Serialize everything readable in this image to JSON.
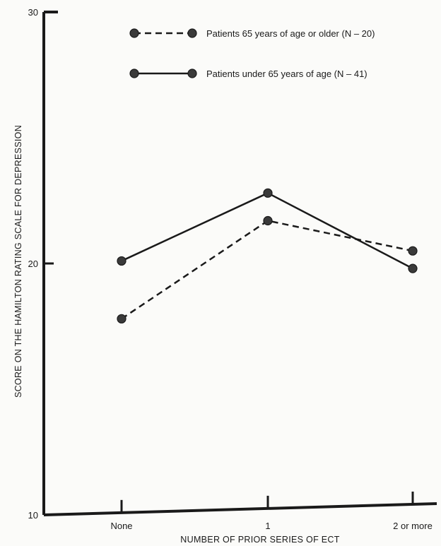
{
  "chart_data": {
    "type": "line",
    "xlabel": "NUMBER OF PRIOR SERIES OF ECT",
    "ylabel": "SCORE ON THE HAMILTON RATING SCALE FOR DEPRESSION",
    "categories": [
      "None",
      "1",
      "2 or more"
    ],
    "ylim": [
      10,
      30
    ],
    "y_ticks": [
      "10",
      "20",
      "30"
    ],
    "grid": false,
    "legend_position": "top-right",
    "series": [
      {
        "name": "Patients 65 years of age or older (N – 20)",
        "values": [
          17.8,
          21.7,
          20.5
        ],
        "line_style": "dashed",
        "color": "#1a1a1a"
      },
      {
        "name": "Patients under 65 years of age (N – 41)",
        "values": [
          20.1,
          22.8,
          19.8
        ],
        "line_style": "solid",
        "color": "#1a1a1a"
      }
    ]
  }
}
